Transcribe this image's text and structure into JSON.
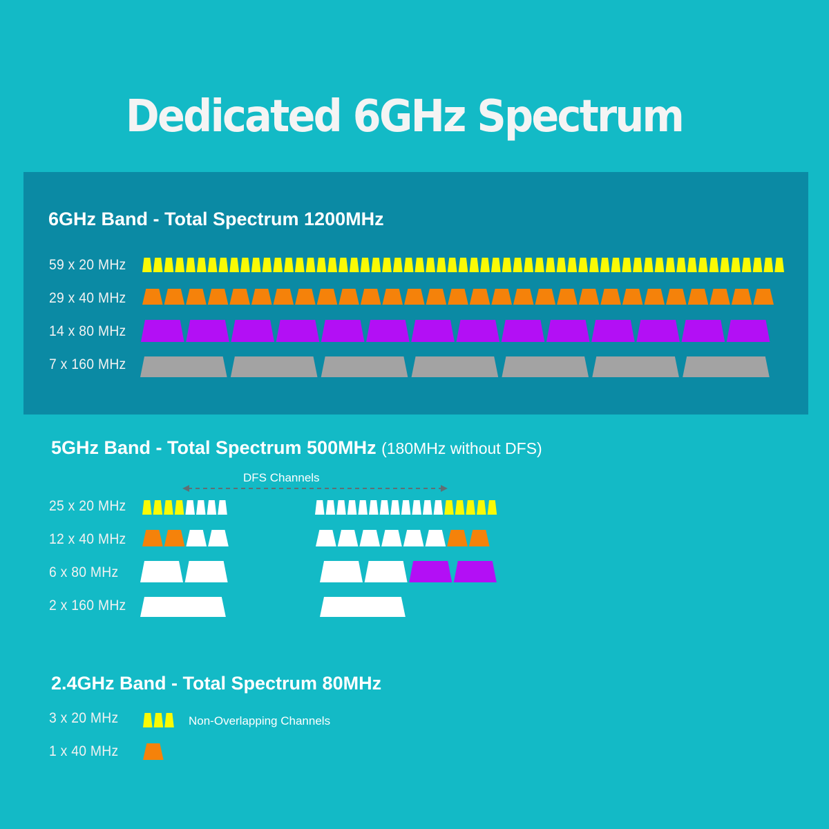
{
  "title": "Dedicated 6GHz Spectrum",
  "colors": {
    "background": "#13bac6",
    "panel": "#0b8aa4",
    "ch20": "#fafa05",
    "ch40": "#f5820a",
    "ch80": "#b30ff5",
    "ch160": "#a3a3a3",
    "dfs": "#ffffff",
    "arrow": "#5f6f74"
  },
  "band6": {
    "heading": "6GHz Band - Total Spectrum 1200MHz",
    "rows": [
      {
        "label": "59 x 20 MHz",
        "width": 20,
        "count": 59,
        "color": "ch20"
      },
      {
        "label": "29 x 40 MHz",
        "width": 40,
        "count": 29,
        "color": "ch40"
      },
      {
        "label": "14 x 80 MHz",
        "width": 80,
        "count": 14,
        "color": "ch80"
      },
      {
        "label": "7 x 160 MHz",
        "width": 160,
        "count": 7,
        "color": "ch160"
      }
    ]
  },
  "band5": {
    "heading": "5GHz Band - Total Spectrum 500MHz",
    "note": "(180MHz without DFS)",
    "dfs_label": "DFS Channels",
    "rows": [
      {
        "label": "25 x 20 MHz",
        "width": 20,
        "count": 25,
        "groups": [
          [
            "ch20",
            "ch20",
            "ch20",
            "ch20",
            "dfs",
            "dfs",
            "dfs",
            "dfs"
          ],
          [
            "dfs",
            "dfs",
            "dfs",
            "dfs",
            "dfs",
            "dfs",
            "dfs",
            "dfs",
            "dfs",
            "dfs",
            "dfs",
            "dfs",
            "ch20",
            "ch20",
            "ch20",
            "ch20",
            "ch20"
          ]
        ]
      },
      {
        "label": "12 x 40 MHz",
        "width": 40,
        "count": 12,
        "groups": [
          [
            "ch40",
            "ch40",
            "dfs",
            "dfs"
          ],
          [
            "dfs",
            "dfs",
            "dfs",
            "dfs",
            "dfs",
            "dfs",
            "ch40",
            "ch40"
          ]
        ]
      },
      {
        "label": "6 x 80 MHz",
        "width": 80,
        "count": 6,
        "groups": [
          [
            "dfs",
            "dfs"
          ],
          [
            "dfs",
            "dfs",
            "ch80",
            "ch80"
          ]
        ]
      },
      {
        "label": "2 x 160 MHz",
        "width": 160,
        "count": 2,
        "groups": [
          [
            "dfs"
          ],
          [
            "dfs"
          ]
        ]
      }
    ]
  },
  "band24": {
    "heading": "2.4GHz Band - Total Spectrum 80MHz",
    "note": "Non-Overlapping Channels",
    "rows": [
      {
        "label": "3 x 20 MHz",
        "width": 20,
        "count": 3,
        "groups": [
          [
            "ch20",
            "ch20",
            "ch20"
          ]
        ]
      },
      {
        "label": "1 x 40 MHz",
        "width": 40,
        "count": 1,
        "groups": [
          [
            "ch40"
          ]
        ]
      }
    ]
  }
}
